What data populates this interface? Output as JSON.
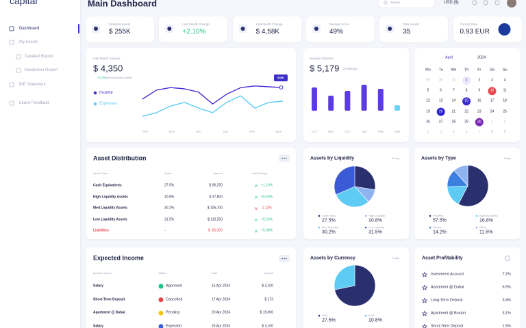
{
  "sidebar": {
    "logo": "capital",
    "nav": [
      "Dashboard",
      "My Assets",
      "Detailed Report",
      "Revolution Report",
      "B/E Statement",
      "Leave Feedback"
    ]
  },
  "header": {
    "title": "Main Dashboard",
    "search": "Search",
    "currency": "USD ($)"
  },
  "stats": [
    {
      "label": "Smartest Invest",
      "value": "$ 255K"
    },
    {
      "label": "Last Month Change",
      "value": "+2.10%"
    },
    {
      "label": "Last Month Change",
      "value": "$ 4,58K"
    },
    {
      "label": "Savings Score",
      "value": "49%"
    },
    {
      "label": "Total Assets",
      "value": "35"
    },
    {
      "label": "Current Rate",
      "value": "0.93 EUR"
    }
  ],
  "savings": {
    "type": "line",
    "label": "Last Month Savings",
    "value": "$ 4,350",
    "change": "+2.3%",
    "change_note": "total since last month",
    "tooltip": "$40K",
    "x_labels": [
      "SEP",
      "NOV",
      "DEC",
      "JAN",
      "FEB",
      "MAR"
    ],
    "series": [
      {
        "name": "Income",
        "color": "#4a2bd3",
        "values": [
          50,
          72,
          78,
          75,
          67,
          38,
          62,
          78,
          82,
          80,
          78
        ]
      },
      {
        "name": "Expenses",
        "color": "#5ecbf5",
        "values": [
          8,
          17,
          33,
          42,
          28,
          17,
          42,
          58,
          28,
          42,
          45
        ]
      }
    ]
  },
  "statistics": {
    "type": "bar",
    "title": "Savings Statistics",
    "value": "$ 5,179",
    "note": "on savings",
    "categories": [
      "OCT",
      "NOV",
      "DEC",
      "JAN",
      "FEB",
      "MAR"
    ],
    "values": [
      34,
      22,
      29,
      38,
      32,
      8
    ],
    "colors": [
      "#5a3ce0",
      "#5a3ce0",
      "#5a3ce0",
      "#5a3ce0",
      "#5a3ce0",
      "#6fd3f7"
    ]
  },
  "calendar": {
    "month": "April",
    "year": "2024",
    "weekdays": [
      "Mo",
      "Tu",
      "We",
      "Th",
      "Fr",
      "Sa",
      "Su"
    ],
    "weeks": [
      [
        {
          "d": "29",
          "s": "muted"
        },
        {
          "d": "30",
          "s": "muted"
        },
        {
          "d": "31",
          "s": "muted"
        },
        {
          "d": "1",
          "s": "soft"
        },
        {
          "d": "2"
        },
        {
          "d": "3"
        },
        {
          "d": "4"
        }
      ],
      [
        {
          "d": "5"
        },
        {
          "d": "6"
        },
        {
          "d": "7"
        },
        {
          "d": "8"
        },
        {
          "d": "9"
        },
        {
          "d": "10",
          "s": "red"
        },
        {
          "d": "11"
        }
      ],
      [
        {
          "d": "12"
        },
        {
          "d": "13"
        },
        {
          "d": "14"
        },
        {
          "d": "15",
          "s": "purple"
        },
        {
          "d": "16"
        },
        {
          "d": "17"
        },
        {
          "d": "18"
        }
      ],
      [
        {
          "d": "19"
        },
        {
          "d": "20",
          "s": "blue"
        },
        {
          "d": "21"
        },
        {
          "d": "22"
        },
        {
          "d": "23"
        },
        {
          "d": "24"
        },
        {
          "d": "25"
        }
      ],
      [
        {
          "d": "26"
        },
        {
          "d": "27"
        },
        {
          "d": "28"
        },
        {
          "d": "29"
        },
        {
          "d": "30",
          "s": "gradient"
        },
        {
          "d": "1",
          "s": "muted"
        },
        {
          "d": "2",
          "s": "muted"
        }
      ],
      [
        {
          "d": "3",
          "s": "muted"
        },
        {
          "d": "4",
          "s": "muted"
        },
        {
          "d": "5",
          "s": "muted"
        },
        {
          "d": "6",
          "s": "muted"
        },
        {
          "d": "7",
          "s": "muted"
        },
        {
          "d": "8",
          "s": "muted"
        },
        {
          "d": "9",
          "s": "muted"
        }
      ]
    ]
  },
  "asset_distribution": {
    "title": "Asset Distribution",
    "columns": [
      "Asset Class",
      "Share",
      "Amount",
      "Last Change"
    ],
    "rows": [
      {
        "cells": [
          "Cash Equivalents",
          "27.5%",
          "$ 96,250",
          "+1.10%"
        ],
        "trend": "up"
      },
      {
        "cells": [
          "High Liquidity Assets",
          "10.8%",
          "$ 37,800",
          "+0.50%"
        ],
        "trend": "up"
      },
      {
        "cells": [
          "Med Liquidity Assets",
          "30.2%",
          "$ 105,700",
          "-1.12%"
        ],
        "trend": "down"
      },
      {
        "cells": [
          "Low Liquidity Assets",
          "31.5%",
          "$ 110,250",
          "+0.23%"
        ],
        "trend": "up"
      },
      {
        "cells": [
          "Liabilities",
          "-",
          "$ -85,000",
          "+5.00%"
        ],
        "trend": "up",
        "alert": true
      }
    ]
  },
  "pies": [
    {
      "type": "pie",
      "title": "Assets by Liquidity",
      "filter": "Today",
      "legend": [
        "Cash Equiv.",
        "High Liquidity",
        "Med Liquidity",
        "Low Liquidity"
      ],
      "values": [
        27.5,
        10.8,
        30.2,
        31.5
      ],
      "value_labels": [
        "27.5%",
        "10.8%",
        "30.2%",
        "31.5%"
      ],
      "colors": [
        "#2a2f6e",
        "#8fb2f0",
        "#5ecbf5",
        "#3b5bd6"
      ]
    },
    {
      "type": "pie",
      "title": "Assets by Type",
      "filter": "Today",
      "legend": [
        "Property",
        "Bank Accounts",
        "Stocks",
        "Other"
      ],
      "values": [
        57.5,
        16.8,
        14.2,
        11.5
      ],
      "value_labels": [
        "57.5%",
        "16.8%",
        "14.2%",
        "11.5%"
      ],
      "colors": [
        "#2a2f6e",
        "#5ecbf5",
        "#3b7fe0",
        "#8fb2f0"
      ]
    },
    {
      "type": "pie",
      "title": "Assets by Currency",
      "filter": "Today",
      "legend": [
        "USD",
        "EUR"
      ],
      "values": [
        27.5,
        10.8
      ],
      "value_labels": [
        "27.5%",
        "10.8%"
      ],
      "colors": [
        "#2a2f6e",
        "#5ecbf5"
      ]
    }
  ],
  "expected_income": {
    "title": "Expected Income",
    "columns": [
      "Income Source",
      "Status",
      "Date",
      "Amount"
    ],
    "rows": [
      {
        "source": "Salary",
        "status": "Approved",
        "date": "15 Apr 2024",
        "amount": "$ 3,100",
        "status_color": "#22c08a"
      },
      {
        "source": "Short-Term Deposit",
        "status": "Cancelled",
        "date": "17 Apr 2024",
        "amount": "$ 173",
        "status_color": "#e5484d"
      },
      {
        "source": "Apartment @ Dubai",
        "status": "Pending",
        "date": "20 Apr 2024",
        "amount": "$ 19,000",
        "status_color": "#f5c518"
      },
      {
        "source": "Salary",
        "status": "Expected",
        "date": "25 Apr 2024",
        "amount": "$ 3,100",
        "status_color": "#3b5bd6"
      }
    ]
  },
  "profitability": {
    "title": "Asset Profitability",
    "rows": [
      {
        "name": "Investment Account",
        "value": "7.2%"
      },
      {
        "name": "Apartment @ Dubai",
        "value": "6.5%"
      },
      {
        "name": "Long-Term Deposit",
        "value": "3.4%"
      },
      {
        "name": "Apartment @ Boston",
        "value": "3.1%"
      },
      {
        "name": "Short-Term Deposit",
        "value": "1.5%"
      }
    ]
  }
}
